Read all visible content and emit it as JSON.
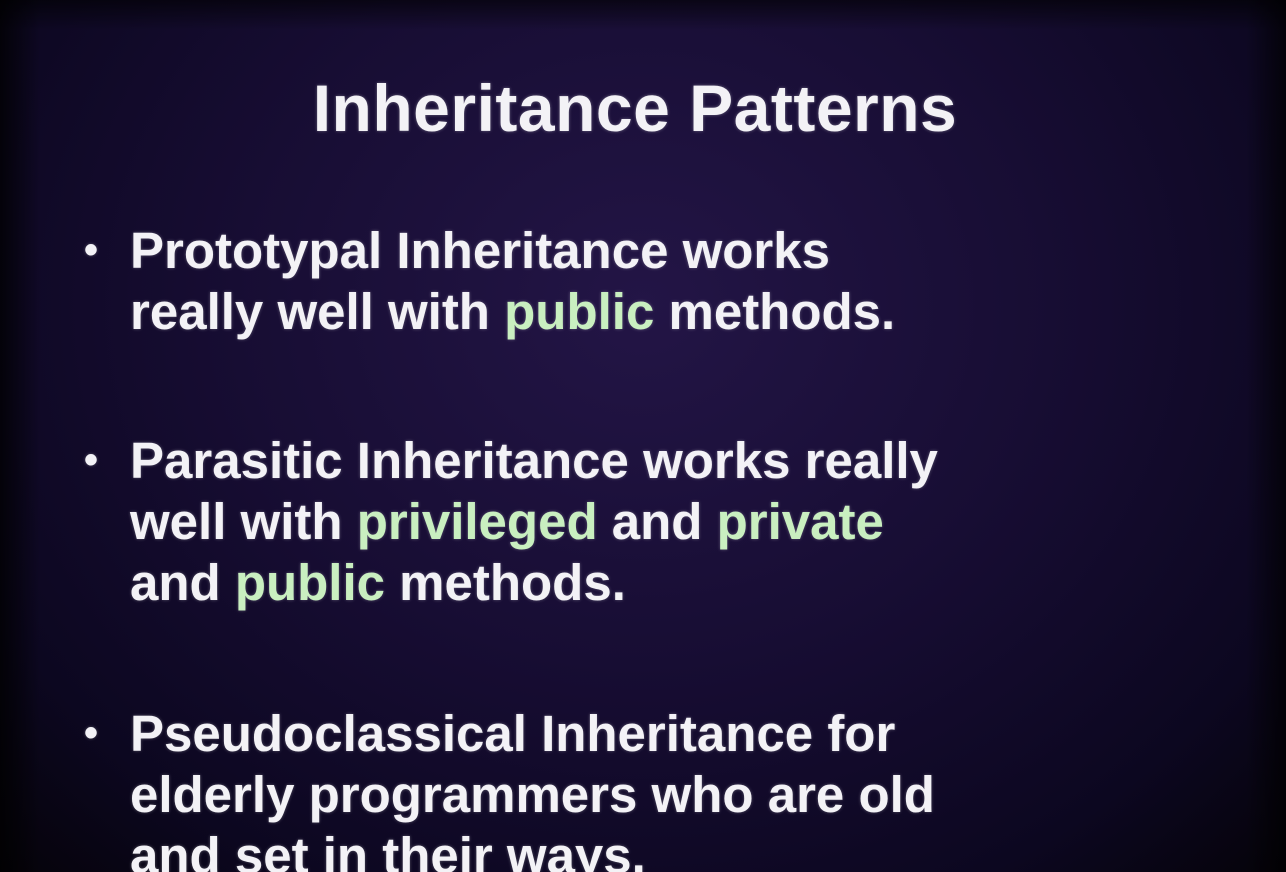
{
  "slide": {
    "title": "Inheritance Patterns",
    "bullets": [
      {
        "l1": "Prototypal Inheritance works",
        "l2a": "really well with ",
        "l2hl": "public",
        "l2b": " methods."
      },
      {
        "l1": "Parasitic Inheritance works really",
        "l2a": "well with ",
        "l2hl1": "privileged",
        "l2b": " and ",
        "l2hl2": "private",
        "l3a": "and ",
        "l3hl": "public",
        "l3b": " methods."
      },
      {
        "l1": "Pseudoclassical Inheritance for",
        "l2": "elderly programmers who are old",
        "l3": "and set in their ways."
      }
    ],
    "bullet_symbol": "•",
    "colors": {
      "text": "#f3f2f6",
      "highlight": "#c9efc0",
      "background": "#170d33"
    }
  }
}
